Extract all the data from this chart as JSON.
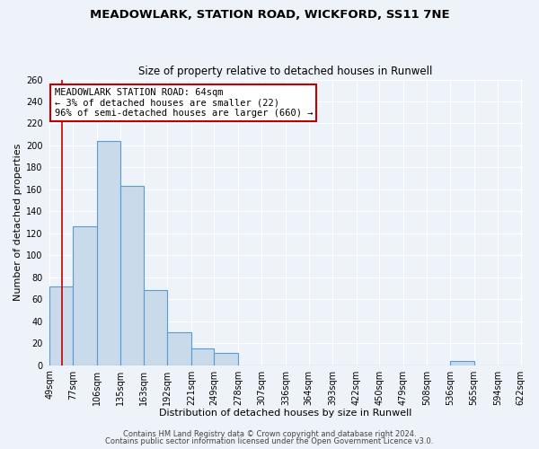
{
  "title1": "MEADOWLARK, STATION ROAD, WICKFORD, SS11 7NE",
  "title2": "Size of property relative to detached houses in Runwell",
  "xlabel": "Distribution of detached houses by size in Runwell",
  "ylabel": "Number of detached properties",
  "bin_edges": [
    49,
    77,
    106,
    135,
    163,
    192,
    221,
    249,
    278,
    307,
    336,
    364,
    393,
    422,
    450,
    479,
    508,
    536,
    565,
    594,
    622
  ],
  "bar_heights": [
    72,
    126,
    204,
    163,
    68,
    30,
    15,
    11,
    0,
    0,
    0,
    0,
    0,
    0,
    0,
    0,
    0,
    4,
    0,
    0
  ],
  "bar_color": "#c9daea",
  "bar_edge_color": "#5b9bd5",
  "property_size": 64,
  "red_line_color": "#c00000",
  "annotation_text_line1": "MEADOWLARK STATION ROAD: 64sqm",
  "annotation_text_line2": "← 3% of detached houses are smaller (22)",
  "annotation_text_line3": "96% of semi-detached houses are larger (660) →",
  "annotation_box_edge_color": "#c00000",
  "annotation_box_face_color": "#ffffff",
  "ylim": [
    0,
    260
  ],
  "yticks": [
    0,
    20,
    40,
    60,
    80,
    100,
    120,
    140,
    160,
    180,
    200,
    220,
    240,
    260
  ],
  "footer1": "Contains HM Land Registry data © Crown copyright and database right 2024.",
  "footer2": "Contains public sector information licensed under the Open Government Licence v3.0.",
  "bg_color": "#eef3f9",
  "plot_bg_color": "#eef3f9",
  "grid_color": "#ffffff",
  "title1_fontsize": 9.5,
  "title2_fontsize": 8.5,
  "axis_label_fontsize": 8,
  "tick_fontsize": 7,
  "annotation_fontsize": 7.5,
  "footer_fontsize": 6
}
